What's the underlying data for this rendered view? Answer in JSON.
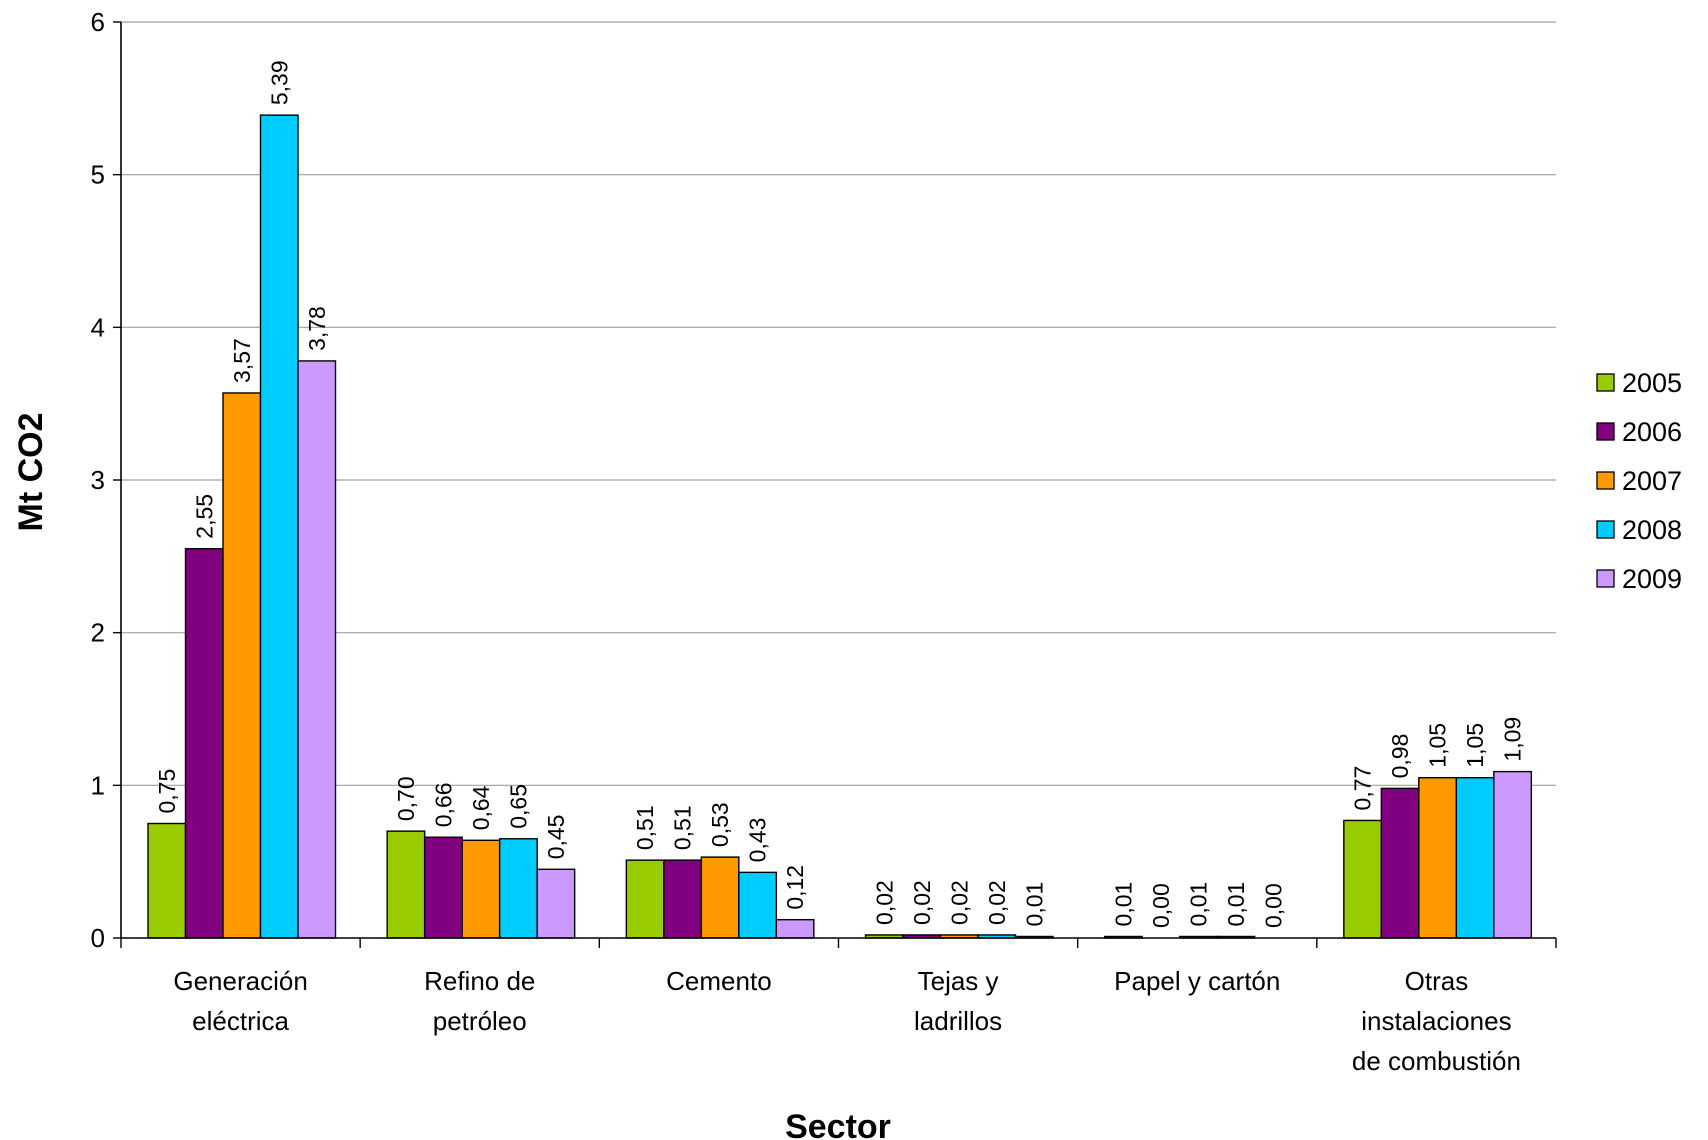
{
  "chart_data": {
    "type": "bar",
    "title": "",
    "xlabel": "Sector",
    "ylabel": "Mt CO2",
    "ylim": [
      0,
      6
    ],
    "yticks": [
      0,
      1,
      2,
      3,
      4,
      5,
      6
    ],
    "grid": true,
    "legend_position": "right",
    "categories": [
      [
        "Generación",
        "eléctrica"
      ],
      [
        "Refino de",
        "petróleo"
      ],
      [
        "Cemento"
      ],
      [
        "Tejas y",
        "ladrillos"
      ],
      [
        "Papel y cartón"
      ],
      [
        "Otras",
        "instalaciones",
        "de combustión"
      ]
    ],
    "series": [
      {
        "name": "2005",
        "color": "#99cc00",
        "values": [
          0.75,
          0.7,
          0.51,
          0.02,
          0.01,
          0.77
        ],
        "labels": [
          "0,75",
          "0,70",
          "0,51",
          "0,02",
          "0,01",
          "0,77"
        ]
      },
      {
        "name": "2006",
        "color": "#800080",
        "values": [
          2.55,
          0.66,
          0.51,
          0.02,
          0.0,
          0.98
        ],
        "labels": [
          "2,55",
          "0,66",
          "0,51",
          "0,02",
          "0,00",
          "0,98"
        ]
      },
      {
        "name": "2007",
        "color": "#ff9900",
        "values": [
          3.57,
          0.64,
          0.53,
          0.02,
          0.01,
          1.05
        ],
        "labels": [
          "3,57",
          "0,64",
          "0,53",
          "0,02",
          "0,01",
          "1,05"
        ]
      },
      {
        "name": "2008",
        "color": "#00ccff",
        "values": [
          5.39,
          0.65,
          0.43,
          0.02,
          0.01,
          1.05
        ],
        "labels": [
          "5,39",
          "0,65",
          "0,43",
          "0,02",
          "0,01",
          "1,05"
        ]
      },
      {
        "name": "2009",
        "color": "#cc99ff",
        "values": [
          3.78,
          0.45,
          0.12,
          0.01,
          0.0,
          1.09
        ],
        "labels": [
          "3,78",
          "0,45",
          "0,12",
          "0,01",
          "0,00",
          "1,09"
        ]
      }
    ]
  }
}
